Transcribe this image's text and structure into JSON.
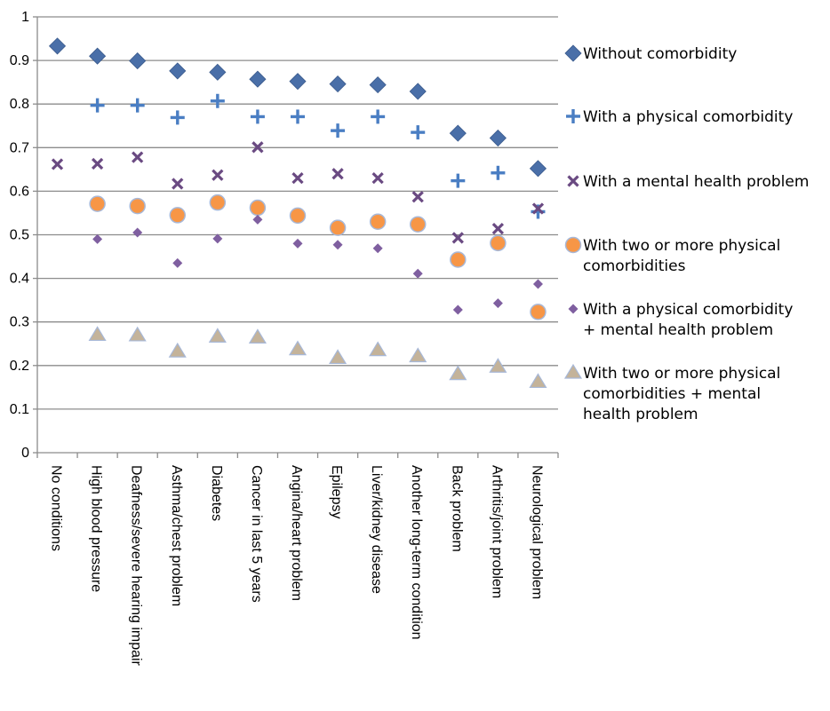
{
  "chart_data": {
    "type": "scatter",
    "categories": [
      "No conditions",
      "High blood pressure",
      "Deafness/severe hearing impair",
      "Asthma/chest problem",
      "Diabetes",
      "Cancer in last 5 years",
      "Angina/heart problem",
      "Epilepsy",
      "Liver/kidney disease",
      "Another long-term condition",
      "Back problem",
      "Arthritis/joint problem",
      "Neurological  problem"
    ],
    "ylim": [
      0,
      1
    ],
    "yticks": [
      "0",
      "0.1",
      "0.2",
      "0.3",
      "0.4",
      "0.5",
      "0.6",
      "0.7",
      "0.8",
      "0.9",
      "1"
    ],
    "grid": true,
    "legend_position": "right",
    "series": [
      {
        "name": "Without comorbidity",
        "marker": "diamond",
        "color": "#4a6fa8",
        "values": [
          0.933,
          0.91,
          0.899,
          0.876,
          0.873,
          0.857,
          0.852,
          0.846,
          0.844,
          0.829,
          0.733,
          0.722,
          0.652
        ]
      },
      {
        "name": "With a physical comorbidity",
        "marker": "plus",
        "color": "#4a7ec3",
        "values": [
          null,
          0.797,
          0.797,
          0.769,
          0.807,
          0.771,
          0.771,
          0.739,
          0.771,
          0.735,
          0.624,
          0.642,
          0.553
        ]
      },
      {
        "name": "With a mental health problem",
        "marker": "x",
        "color": "#6a4a82",
        "values": [
          0.662,
          0.663,
          0.678,
          0.617,
          0.637,
          0.701,
          0.63,
          0.64,
          0.63,
          0.587,
          0.493,
          0.514,
          0.56
        ]
      },
      {
        "name": "With two or more physical comorbidities",
        "marker": "circle",
        "color": "#f79646",
        "values": [
          null,
          0.571,
          0.566,
          0.545,
          0.574,
          0.562,
          0.544,
          0.516,
          0.53,
          0.524,
          0.443,
          0.481,
          0.323
        ]
      },
      {
        "name": "With a physical comorbidity + mental health problem",
        "marker": "small-diamond",
        "color": "#7f5fa0",
        "values": [
          null,
          0.49,
          0.505,
          0.435,
          0.491,
          0.535,
          0.48,
          0.477,
          0.469,
          0.411,
          0.328,
          0.343,
          0.387
        ]
      },
      {
        "name": "With two or more physical comorbidities + mental health problem",
        "marker": "triangle",
        "color": "#c4b39a",
        "values": [
          null,
          0.27,
          0.269,
          0.232,
          0.266,
          0.264,
          0.237,
          0.217,
          0.235,
          0.221,
          0.18,
          0.197,
          0.162
        ]
      }
    ]
  }
}
